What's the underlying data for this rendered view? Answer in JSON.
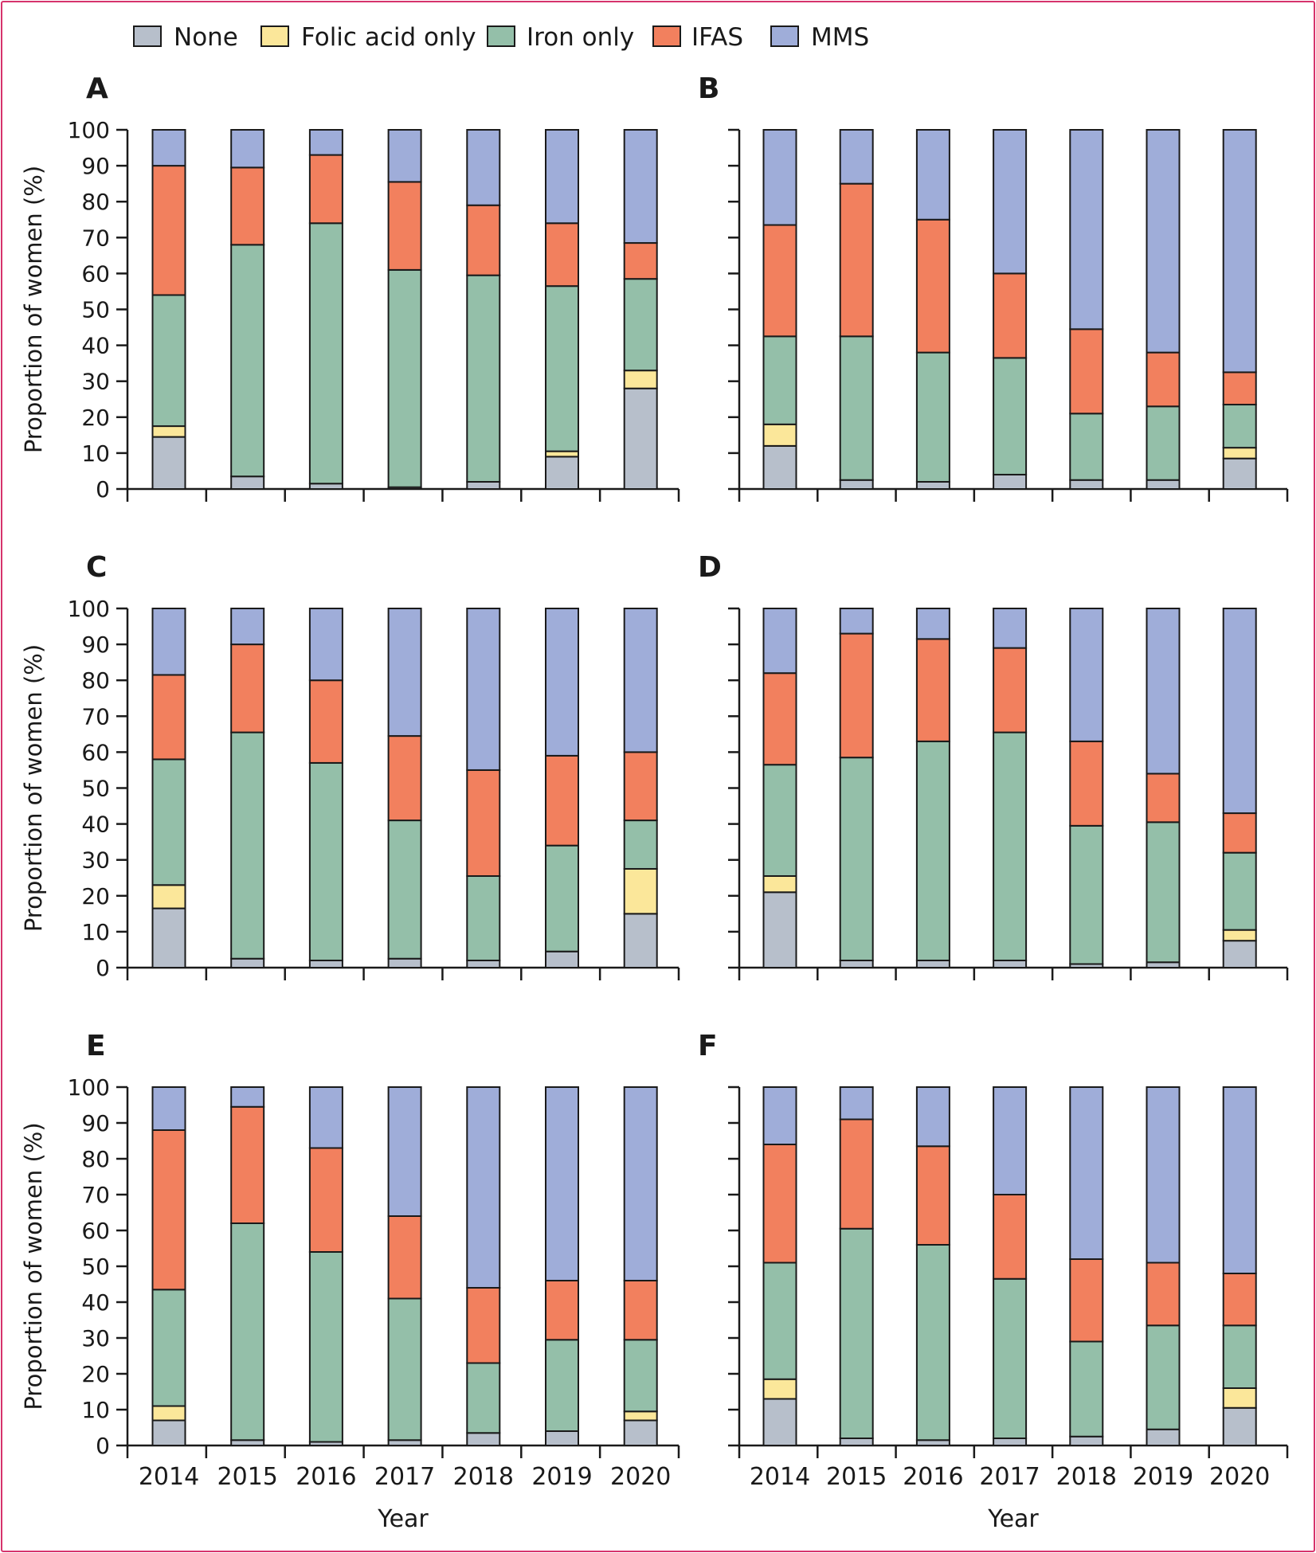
{
  "chart_data": {
    "type": "bar",
    "stacked": true,
    "legend": [
      {
        "name": "None",
        "color": "#b7bfcb"
      },
      {
        "name": "Folic acid only",
        "color": "#fbe79a"
      },
      {
        "name": "Iron only",
        "color": "#94bfa9"
      },
      {
        "name": "IFAS",
        "color": "#f2805e"
      },
      {
        "name": "MMS",
        "color": "#9fadd9"
      }
    ],
    "legend_position": "top",
    "categories": [
      "2014",
      "2015",
      "2016",
      "2017",
      "2018",
      "2019",
      "2020"
    ],
    "ylabel": "Proportion of women (%)",
    "xlabel": "Year",
    "ylim": [
      0,
      100
    ],
    "yticks": [
      "0",
      "10",
      "20",
      "30",
      "40",
      "50",
      "60",
      "70",
      "80",
      "90",
      "100"
    ],
    "panels": [
      {
        "label": "A",
        "series": [
          {
            "name": "None",
            "values": [
              14.5,
              3.5,
              1.5,
              0.5,
              2,
              9,
              28
            ]
          },
          {
            "name": "Folic acid only",
            "values": [
              3,
              0,
              0,
              0,
              0,
              1.5,
              5
            ]
          },
          {
            "name": "Iron only",
            "values": [
              36.5,
              64.5,
              72.5,
              60.5,
              57.5,
              46,
              25.5
            ]
          },
          {
            "name": "IFAS",
            "values": [
              36,
              21.5,
              19,
              24.5,
              19.5,
              17.5,
              10
            ]
          },
          {
            "name": "MMS",
            "values": [
              10,
              10.5,
              7,
              14.5,
              21,
              26,
              31.5
            ]
          }
        ]
      },
      {
        "label": "B",
        "series": [
          {
            "name": "None",
            "values": [
              12,
              2.5,
              2,
              4,
              2.5,
              2.5,
              8.5
            ]
          },
          {
            "name": "Folic acid only",
            "values": [
              6,
              0,
              0,
              0,
              0,
              0,
              3
            ]
          },
          {
            "name": "Iron only",
            "values": [
              24.5,
              40,
              36,
              32.5,
              18.5,
              20.5,
              12
            ]
          },
          {
            "name": "IFAS",
            "values": [
              31,
              42.5,
              37,
              23.5,
              23.5,
              15,
              9
            ]
          },
          {
            "name": "MMS",
            "values": [
              26.5,
              15,
              25,
              40,
              55.5,
              62,
              67.5
            ]
          }
        ]
      },
      {
        "label": "C",
        "series": [
          {
            "name": "None",
            "values": [
              16.5,
              2.5,
              2,
              2.5,
              2,
              4.5,
              15
            ]
          },
          {
            "name": "Folic acid only",
            "values": [
              6.5,
              0,
              0,
              0,
              0,
              0,
              12.5
            ]
          },
          {
            "name": "Iron only",
            "values": [
              35,
              63,
              55,
              38.5,
              23.5,
              29.5,
              13.5
            ]
          },
          {
            "name": "IFAS",
            "values": [
              23.5,
              24.5,
              23,
              23.5,
              29.5,
              25,
              19
            ]
          },
          {
            "name": "MMS",
            "values": [
              18.5,
              10,
              20,
              35.5,
              45,
              41,
              40
            ]
          }
        ]
      },
      {
        "label": "D",
        "series": [
          {
            "name": "None",
            "values": [
              21,
              2,
              2,
              2,
              1,
              1.5,
              7.5
            ]
          },
          {
            "name": "Folic acid only",
            "values": [
              4.5,
              0,
              0,
              0,
              0,
              0,
              3
            ]
          },
          {
            "name": "Iron only",
            "values": [
              31,
              56.5,
              61,
              63.5,
              38.5,
              39,
              21.5
            ]
          },
          {
            "name": "IFAS",
            "values": [
              25.5,
              34.5,
              28.5,
              23.5,
              23.5,
              13.5,
              11
            ]
          },
          {
            "name": "MMS",
            "values": [
              18,
              7,
              8.5,
              11,
              37,
              46,
              57
            ]
          }
        ]
      },
      {
        "label": "E",
        "series": [
          {
            "name": "None",
            "values": [
              7,
              1.5,
              1,
              1.5,
              3.5,
              4,
              7
            ]
          },
          {
            "name": "Folic acid only",
            "values": [
              4,
              0,
              0,
              0,
              0,
              0,
              2.5
            ]
          },
          {
            "name": "Iron only",
            "values": [
              32.5,
              60.5,
              53,
              39.5,
              19.5,
              25.5,
              20
            ]
          },
          {
            "name": "IFAS",
            "values": [
              44.5,
              32.5,
              29,
              23,
              21,
              16.5,
              16.5
            ]
          },
          {
            "name": "MMS",
            "values": [
              12,
              5.5,
              17,
              36,
              56,
              54,
              54
            ]
          }
        ]
      },
      {
        "label": "F",
        "series": [
          {
            "name": "None",
            "values": [
              13,
              2,
              1.5,
              2,
              2.5,
              4.5,
              10.5
            ]
          },
          {
            "name": "Folic acid only",
            "values": [
              5.5,
              0,
              0,
              0,
              0,
              0,
              5.5
            ]
          },
          {
            "name": "Iron only",
            "values": [
              32.5,
              58.5,
              54.5,
              44.5,
              26.5,
              29,
              17.5
            ]
          },
          {
            "name": "IFAS",
            "values": [
              33,
              30.5,
              27.5,
              23.5,
              23,
              17.5,
              14.5
            ]
          },
          {
            "name": "MMS",
            "values": [
              16,
              9,
              16.5,
              30,
              48,
              49,
              52
            ]
          }
        ]
      }
    ]
  }
}
